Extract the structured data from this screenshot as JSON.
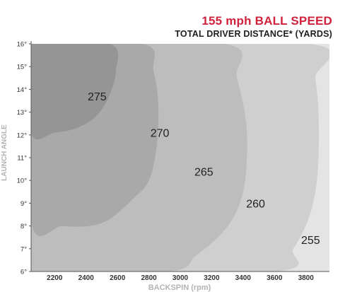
{
  "chart_data": {
    "type": "heatmap",
    "title": "155 mph BALL SPEED",
    "subtitle": "TOTAL DRIVER DISTANCE* (YARDS)",
    "xlabel": "BACKSPIN (rpm)",
    "ylabel": "LAUNCH ANGLE",
    "x_ticks": [
      "2200",
      "2400",
      "2600",
      "2800",
      "3000",
      "3200",
      "3400",
      "3600",
      "3800"
    ],
    "x_tick_values": [
      2200,
      2400,
      2600,
      2800,
      3000,
      3200,
      3400,
      3600,
      3800
    ],
    "y_ticks": [
      "6°",
      "7°",
      "8°",
      "9°",
      "10°",
      "11°",
      "12°",
      "13°",
      "14°",
      "15°",
      "16°"
    ],
    "y_tick_values": [
      6,
      7,
      8,
      9,
      10,
      11,
      12,
      13,
      14,
      15,
      16
    ],
    "xlim": [
      2050,
      3950
    ],
    "ylim": [
      6,
      16
    ],
    "grid": false,
    "legend": "none",
    "colors": {
      "title": "#d0223c",
      "subtitle": "#1e1e1e",
      "axis_label": "#b3b3b3",
      "tick_label": "#333333",
      "zone_255": "#e4e4e4",
      "zone_260": "#cfcfcf",
      "zone_265": "#bdbdbd",
      "zone_270": "#a9a9a9",
      "zone_275": "#959595"
    },
    "zones": [
      {
        "label": "255",
        "value": 255,
        "label_at": [
          3830,
          7.4
        ],
        "boundary": [
          [
            2050,
            16
          ],
          [
            3950,
            16
          ],
          [
            3950,
            6
          ],
          [
            2050,
            6
          ]
        ]
      },
      {
        "label": "260",
        "value": 260,
        "label_at": [
          3480,
          9.0
        ],
        "boundary": [
          [
            2050,
            16
          ],
          [
            3820,
            16
          ],
          [
            3860,
            14.5
          ],
          [
            3880,
            13
          ],
          [
            3880,
            11
          ],
          [
            3860,
            9.5
          ],
          [
            3810,
            8.2
          ],
          [
            3720,
            7.0
          ],
          [
            3600,
            6.0
          ],
          [
            2050,
            6
          ]
        ]
      },
      {
        "label": "265",
        "value": 265,
        "label_at": [
          3150,
          10.4
        ],
        "boundary": [
          [
            2050,
            16
          ],
          [
            3280,
            16
          ],
          [
            3360,
            14.5
          ],
          [
            3420,
            12.5
          ],
          [
            3420,
            10.5
          ],
          [
            3380,
            9.0
          ],
          [
            3280,
            7.8
          ],
          [
            3100,
            6.7
          ],
          [
            2920,
            6.0
          ],
          [
            2050,
            6
          ]
        ]
      },
      {
        "label": "270",
        "value": 270,
        "label_at": [
          2870,
          12.1
        ],
        "boundary": [
          [
            2050,
            16
          ],
          [
            2760,
            16
          ],
          [
            2830,
            14.8
          ],
          [
            2860,
            13.3
          ],
          [
            2850,
            11.5
          ],
          [
            2800,
            10.0
          ],
          [
            2700,
            9.2
          ],
          [
            2550,
            8.3
          ],
          [
            2420,
            8.0
          ],
          [
            2250,
            8.0
          ],
          [
            2050,
            8.2
          ]
        ]
      },
      {
        "label": "275",
        "value": 275,
        "label_at": [
          2470,
          13.7
        ],
        "boundary": [
          [
            2050,
            16
          ],
          [
            2550,
            16
          ],
          [
            2590,
            14.8
          ],
          [
            2540,
            13.6
          ],
          [
            2460,
            12.8
          ],
          [
            2340,
            12.3
          ],
          [
            2200,
            12.1
          ],
          [
            2050,
            12.1
          ]
        ]
      }
    ]
  }
}
